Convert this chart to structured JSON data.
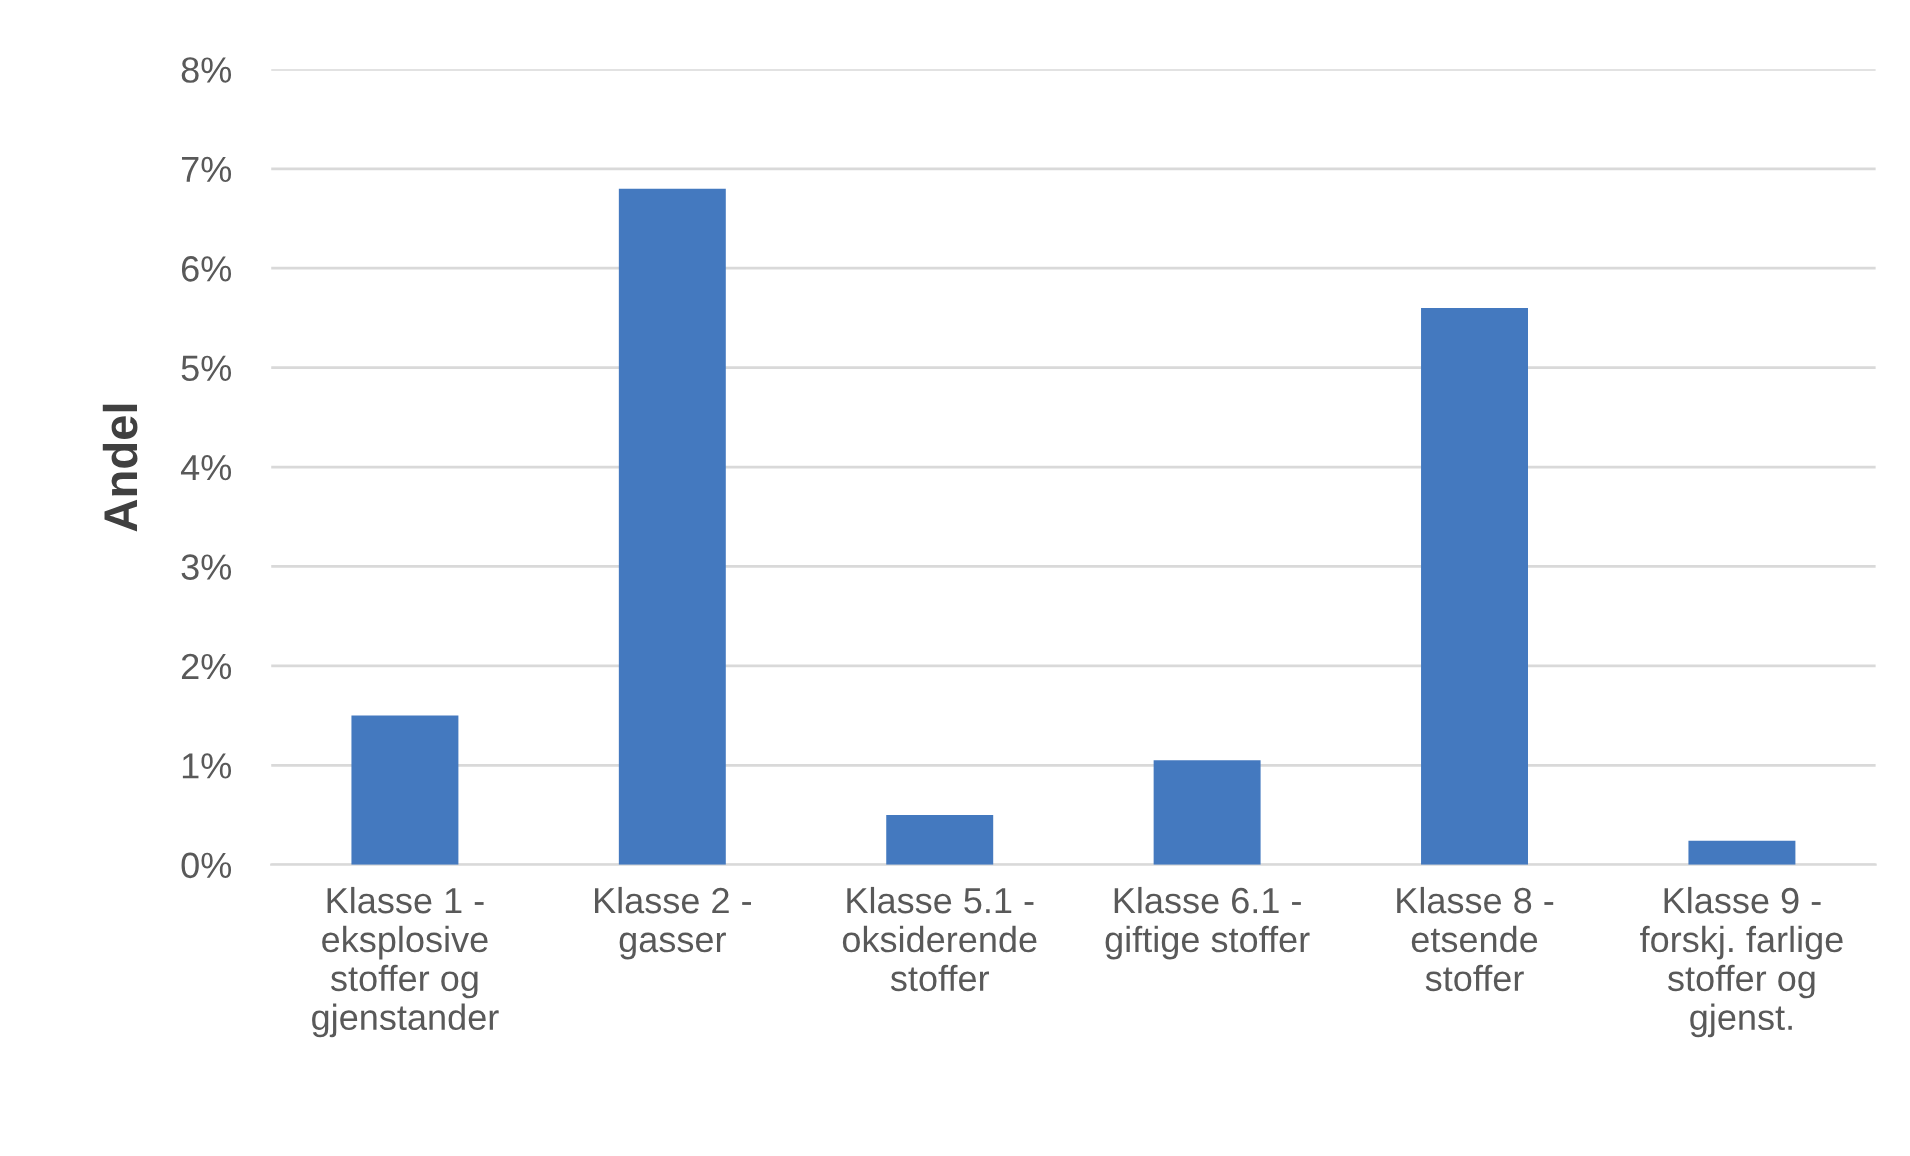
{
  "chart_data": {
    "type": "bar",
    "ylabel": "Andel",
    "categories": [
      "Klasse 1 -\neksplosive\nstoffer og\ngjenstander",
      "Klasse 2 -\ngasser",
      "Klasse 5.1 -\noksiderende\nstoffer",
      "Klasse 6.1 -\ngiftige stoffer",
      "Klasse 8 -\netsende\nstoffer",
      "Klasse 9 -\nforskj. farlige\nstoffer og\ngjenst."
    ],
    "values": [
      1.5,
      6.8,
      0.5,
      1.05,
      5.6,
      0.24
    ],
    "color": "#4479bf",
    "ylim": [
      0,
      8
    ],
    "yticks": [
      {
        "value": 0,
        "label": "0%"
      },
      {
        "value": 1,
        "label": "1%"
      },
      {
        "value": 2,
        "label": "2%"
      },
      {
        "value": 3,
        "label": "3%"
      },
      {
        "value": 4,
        "label": "4%"
      },
      {
        "value": 5,
        "label": "5%"
      },
      {
        "value": 6,
        "label": "6%"
      },
      {
        "value": 7,
        "label": "7%"
      },
      {
        "value": 8,
        "label": "8%"
      }
    ],
    "grid": "y",
    "legend": false
  }
}
